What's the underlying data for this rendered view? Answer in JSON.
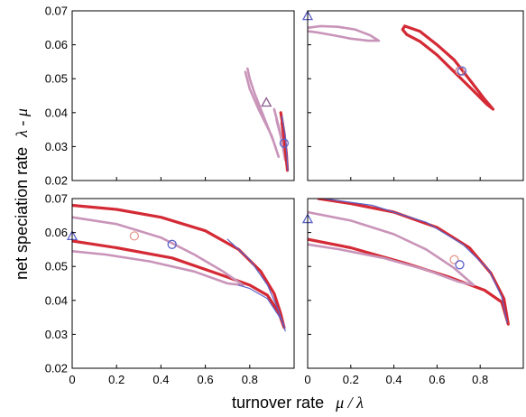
{
  "chart_data": {
    "type": "line",
    "layout": "2x2 panels with shared axes",
    "xlabel": {
      "text": "turnover rate",
      "symbol": "μ / λ"
    },
    "ylabel": {
      "text": "net speciation rate",
      "symbol": "λ - μ"
    },
    "xlim": [
      0,
      1.0
    ],
    "ylim": [
      0.02,
      0.07
    ],
    "x_ticks": [
      "0",
      "0.2",
      "0.4",
      "0.6",
      "0.8"
    ],
    "y_ticks": [
      "0.02",
      "0.03",
      "0.04",
      "0.05",
      "0.06",
      "0.07"
    ],
    "colors": {
      "red": "#d42a35",
      "pink": "#c994b9",
      "blue": "#5b62c8"
    },
    "panels": [
      {
        "position": "top-left",
        "contours": [
          {
            "color": "pink",
            "width": 2.6,
            "points": [
              [
                0.78,
                0.052
              ],
              [
                0.8,
                0.047
              ],
              [
                0.84,
                0.041
              ],
              [
                0.87,
                0.037
              ],
              [
                0.9,
                0.033
              ],
              [
                0.92,
                0.029
              ],
              [
                0.93,
                0.027
              ],
              [
                0.91,
                0.031
              ],
              [
                0.88,
                0.036
              ],
              [
                0.85,
                0.041
              ],
              [
                0.82,
                0.046
              ],
              [
                0.8,
                0.05
              ],
              [
                0.79,
                0.053
              ]
            ]
          },
          {
            "color": "pink",
            "width": 2.6,
            "points": [
              [
                0.91,
                0.041
              ],
              [
                0.93,
                0.036
              ],
              [
                0.95,
                0.031
              ],
              [
                0.96,
                0.026
              ],
              [
                0.94,
                0.033
              ],
              [
                0.92,
                0.038
              ]
            ]
          },
          {
            "color": "red",
            "width": 3.2,
            "points": [
              [
                0.94,
                0.04
              ],
              [
                0.955,
                0.034
              ],
              [
                0.965,
                0.028
              ],
              [
                0.97,
                0.023
              ],
              [
                0.955,
                0.032
              ],
              [
                0.945,
                0.037
              ]
            ]
          },
          {
            "color": "blue",
            "width": 1.2,
            "points": [
              [
                0.945,
                0.039
              ],
              [
                0.96,
                0.033
              ],
              [
                0.968,
                0.027
              ],
              [
                0.972,
                0.023
              ]
            ]
          }
        ],
        "markers": [
          {
            "shape": "triangle",
            "color": "#8c5d8c",
            "x": 0.875,
            "y": 0.043
          },
          {
            "shape": "circle",
            "color": "#5b62c8",
            "x": 0.955,
            "y": 0.031
          }
        ]
      },
      {
        "position": "top-right",
        "contours": [
          {
            "color": "pink",
            "width": 2.6,
            "points": [
              [
                0.0,
                0.065
              ],
              [
                0.06,
                0.0655
              ],
              [
                0.14,
                0.0653
              ],
              [
                0.22,
                0.0645
              ],
              [
                0.29,
                0.0628
              ],
              [
                0.33,
                0.0612
              ],
              [
                0.28,
                0.0612
              ],
              [
                0.2,
                0.0618
              ],
              [
                0.12,
                0.0628
              ],
              [
                0.05,
                0.0636
              ],
              [
                0.0,
                0.064
              ]
            ]
          },
          {
            "color": "red",
            "width": 3.2,
            "points": [
              [
                0.45,
                0.0655
              ],
              [
                0.52,
                0.064
              ],
              [
                0.6,
                0.06
              ],
              [
                0.68,
                0.0555
              ],
              [
                0.76,
                0.049
              ],
              [
                0.82,
                0.044
              ],
              [
                0.86,
                0.041
              ],
              [
                0.83,
                0.0425
              ],
              [
                0.76,
                0.047
              ],
              [
                0.68,
                0.052
              ],
              [
                0.6,
                0.057
              ],
              [
                0.52,
                0.061
              ],
              [
                0.46,
                0.063
              ],
              [
                0.44,
                0.0645
              ],
              [
                0.45,
                0.0655
              ]
            ]
          }
        ],
        "markers": [
          {
            "shape": "triangle",
            "color": "#5b62c8",
            "x": 0.0,
            "y": 0.0685
          },
          {
            "shape": "circle",
            "color": "#d97a7a",
            "x": 0.705,
            "y": 0.0523
          },
          {
            "shape": "circle",
            "color": "#5b62c8",
            "x": 0.715,
            "y": 0.0523
          }
        ]
      },
      {
        "position": "bottom-left",
        "contours": [
          {
            "color": "red",
            "width": 3.2,
            "points": [
              [
                0.0,
                0.068
              ],
              [
                0.2,
                0.0668
              ],
              [
                0.4,
                0.0645
              ],
              [
                0.6,
                0.0605
              ],
              [
                0.75,
                0.055
              ],
              [
                0.85,
                0.0485
              ],
              [
                0.91,
                0.042
              ],
              [
                0.94,
                0.036
              ],
              [
                0.955,
                0.032
              ],
              [
                0.93,
                0.0365
              ],
              [
                0.88,
                0.0415
              ],
              [
                0.8,
                0.0445
              ],
              [
                0.65,
                0.048
              ],
              [
                0.45,
                0.0525
              ],
              [
                0.2,
                0.0555
              ],
              [
                0.0,
                0.0575
              ]
            ]
          },
          {
            "color": "pink",
            "width": 2.6,
            "points": [
              [
                0.0,
                0.0645
              ],
              [
                0.2,
                0.0625
              ],
              [
                0.4,
                0.0585
              ],
              [
                0.55,
                0.0535
              ],
              [
                0.68,
                0.0485
              ],
              [
                0.77,
                0.0445
              ],
              [
                0.7,
                0.045
              ],
              [
                0.55,
                0.0485
              ],
              [
                0.35,
                0.0515
              ],
              [
                0.15,
                0.0535
              ],
              [
                0.0,
                0.0545
              ]
            ]
          },
          {
            "color": "blue",
            "width": 1.2,
            "points": [
              [
                0.7,
                0.058
              ],
              [
                0.8,
                0.052
              ],
              [
                0.88,
                0.0445
              ],
              [
                0.93,
                0.037
              ],
              [
                0.96,
                0.031
              ],
              [
                0.95,
                0.0335
              ],
              [
                0.88,
                0.0405
              ],
              [
                0.8,
                0.0435
              ],
              [
                0.75,
                0.0445
              ]
            ]
          }
        ],
        "markers": [
          {
            "shape": "triangle",
            "color": "#5b62c8",
            "x": 0.0,
            "y": 0.059
          },
          {
            "shape": "circle",
            "color": "#e79a8d",
            "x": 0.28,
            "y": 0.059
          },
          {
            "shape": "circle",
            "color": "#5b62c8",
            "x": 0.45,
            "y": 0.0565
          }
        ]
      },
      {
        "position": "bottom-right",
        "contours": [
          {
            "color": "red",
            "width": 3.2,
            "points": [
              [
                0.05,
                0.07
              ],
              [
                0.2,
                0.0685
              ],
              [
                0.4,
                0.066
              ],
              [
                0.6,
                0.0615
              ],
              [
                0.75,
                0.0555
              ],
              [
                0.85,
                0.048
              ],
              [
                0.91,
                0.0405
              ],
              [
                0.93,
                0.033
              ],
              [
                0.9,
                0.0395
              ],
              [
                0.82,
                0.043
              ],
              [
                0.65,
                0.047
              ],
              [
                0.45,
                0.051
              ],
              [
                0.2,
                0.0555
              ],
              [
                0.0,
                0.058
              ]
            ]
          },
          {
            "color": "pink",
            "width": 2.6,
            "points": [
              [
                0.0,
                0.066
              ],
              [
                0.2,
                0.0635
              ],
              [
                0.4,
                0.0595
              ],
              [
                0.55,
                0.055
              ],
              [
                0.68,
                0.0495
              ],
              [
                0.77,
                0.0445
              ],
              [
                0.7,
                0.0455
              ],
              [
                0.55,
                0.049
              ],
              [
                0.35,
                0.0525
              ],
              [
                0.15,
                0.055
              ],
              [
                0.0,
                0.0565
              ]
            ]
          },
          {
            "color": "blue",
            "width": 1.2,
            "points": [
              [
                0.05,
                0.0702
              ],
              [
                0.3,
                0.068
              ],
              [
                0.55,
                0.063
              ],
              [
                0.72,
                0.0565
              ],
              [
                0.84,
                0.049
              ],
              [
                0.9,
                0.041
              ],
              [
                0.925,
                0.0335
              ]
            ]
          }
        ],
        "markers": [
          {
            "shape": "triangle",
            "color": "#5b62c8",
            "x": 0.0,
            "y": 0.064
          },
          {
            "shape": "circle",
            "color": "#e79a8d",
            "x": 0.68,
            "y": 0.052
          },
          {
            "shape": "circle",
            "color": "#5b62c8",
            "x": 0.705,
            "y": 0.0505
          }
        ]
      }
    ]
  }
}
